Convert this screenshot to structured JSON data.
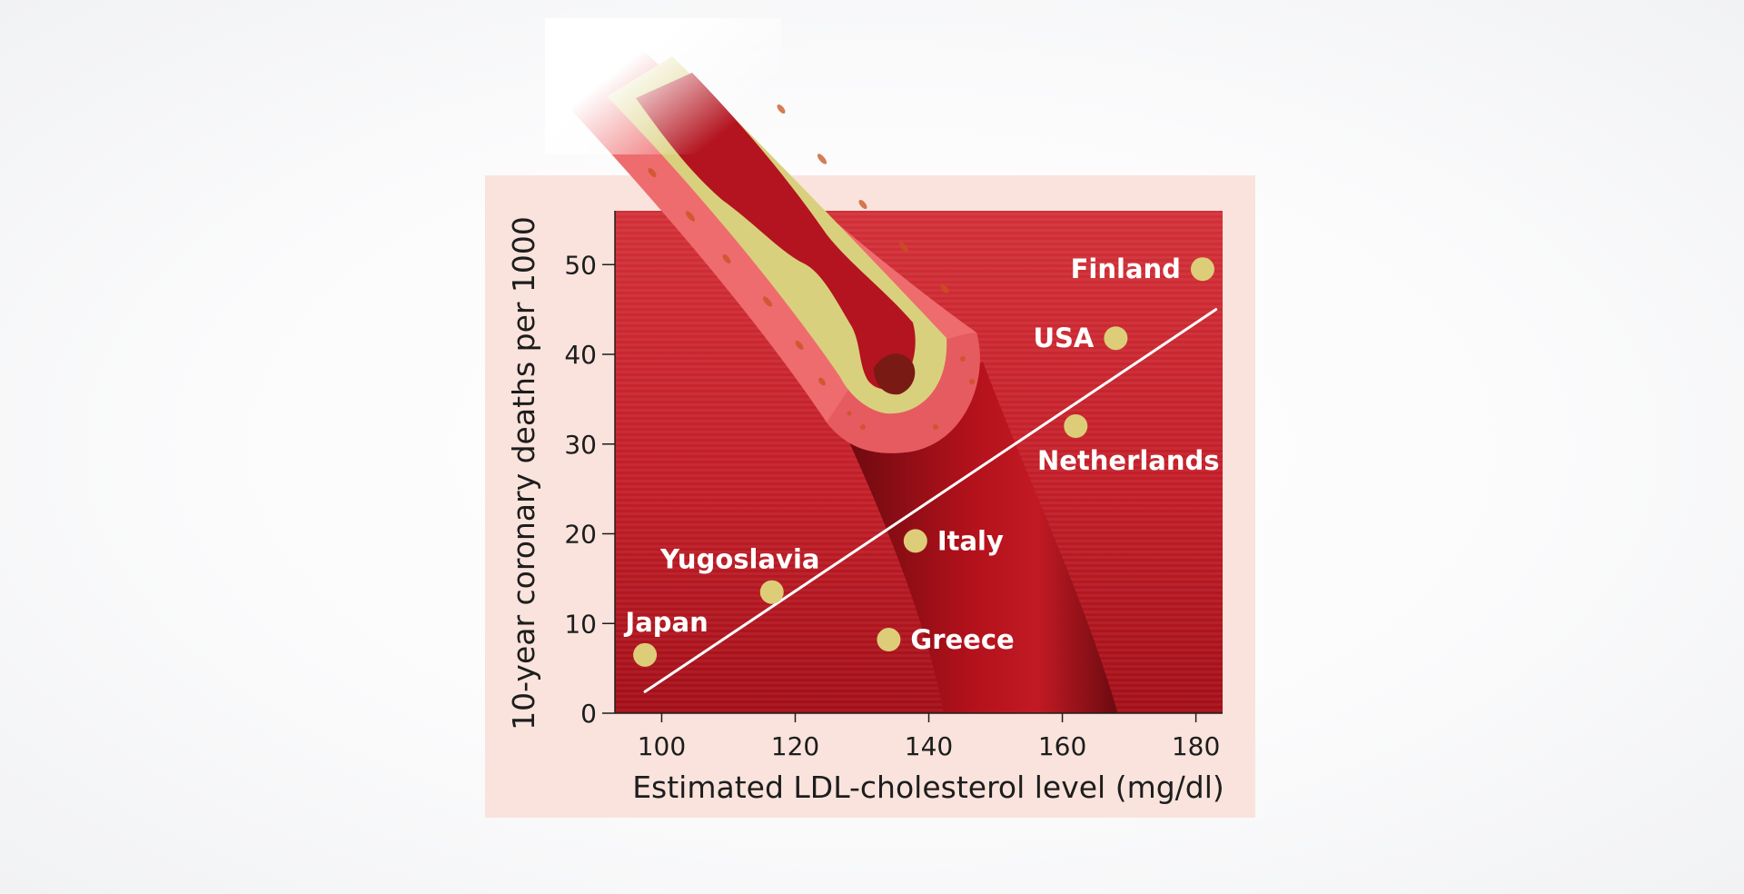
{
  "chart_data": {
    "type": "scatter",
    "title": "",
    "xlabel": "Estimated LDL-cholesterol level (mg/dl)",
    "ylabel": "10-year coronary deaths per 1000",
    "xlim": [
      93,
      184
    ],
    "ylim": [
      0,
      56
    ],
    "x_ticks": [
      100,
      120,
      140,
      160,
      180
    ],
    "y_ticks": [
      0,
      10,
      20,
      30,
      40,
      50
    ],
    "points": [
      {
        "label": "Japan",
        "x": 97.5,
        "y": 6.5,
        "label_pos": "above"
      },
      {
        "label": "Yugoslavia",
        "x": 116.5,
        "y": 13.5,
        "label_pos": "above"
      },
      {
        "label": "Greece",
        "x": 134,
        "y": 8.2,
        "label_pos": "right"
      },
      {
        "label": "Italy",
        "x": 138,
        "y": 19.2,
        "label_pos": "right"
      },
      {
        "label": "Netherlands",
        "x": 162,
        "y": 32,
        "label_pos": "below"
      },
      {
        "label": "USA",
        "x": 168,
        "y": 41.8,
        "label_pos": "left"
      },
      {
        "label": "Finland",
        "x": 181,
        "y": 49.5,
        "label_pos": "left"
      }
    ],
    "trend_line": {
      "x": [
        97.5,
        183
      ],
      "y": [
        2.4,
        45
      ]
    },
    "colors": {
      "panel": "#f9e3dc",
      "plot_bg": "#cc2a30",
      "plot_bg_dark": "#a8121c",
      "marker": "#ddcd78",
      "trend": "#ffffff",
      "artery_wall": "#ef6f70",
      "plaque": "#d8d07c",
      "blood": "#a10d17"
    }
  }
}
